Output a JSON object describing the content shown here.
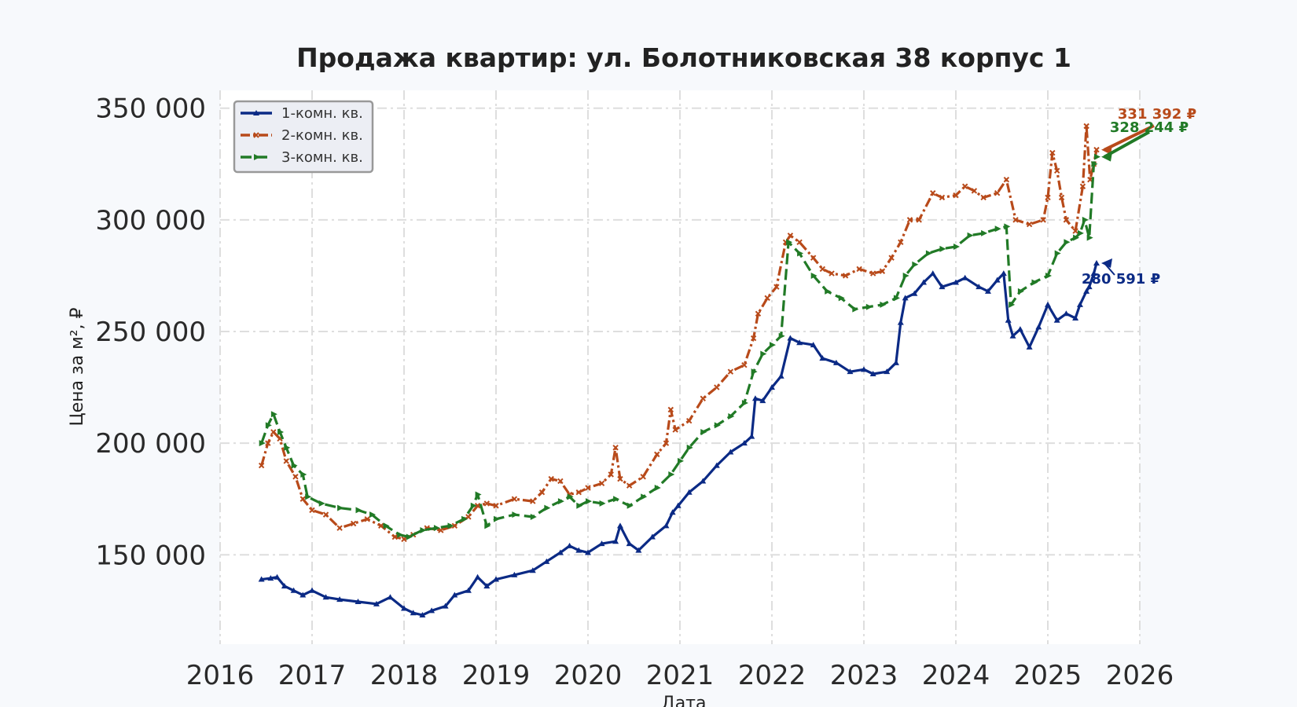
{
  "chart_data": {
    "type": "line",
    "title": "Продажа квартир: ул. Болотниковская 38 корпус 1",
    "xlabel": "Дата",
    "ylabel": "Цена за м², ₽",
    "xlim": [
      2016.0,
      2026.0
    ],
    "ylim": [
      110000,
      358000
    ],
    "x_ticks": [
      2016,
      2017,
      2018,
      2019,
      2020,
      2021,
      2022,
      2023,
      2024,
      2025,
      2026
    ],
    "x_tick_labels": [
      "2016",
      "2017",
      "2018",
      "2019",
      "2020",
      "2021",
      "2022",
      "2023",
      "2024",
      "2025",
      "2026"
    ],
    "y_ticks": [
      150000,
      200000,
      250000,
      300000,
      350000
    ],
    "y_tick_labels": [
      "150 000",
      "200 000",
      "250 000",
      "300 000",
      "350 000"
    ],
    "grid": true,
    "legend_position": "top-left",
    "series": [
      {
        "name": "1-комн. кв.",
        "color": "#0b2a85",
        "marker": "triangle-up",
        "line_style": "solid",
        "x": [
          2016.45,
          2016.55,
          2016.62,
          2016.7,
          2016.8,
          2016.9,
          2017.0,
          2017.15,
          2017.3,
          2017.5,
          2017.7,
          2017.85,
          2018.0,
          2018.1,
          2018.2,
          2018.3,
          2018.45,
          2018.55,
          2018.7,
          2018.8,
          2018.9,
          2019.0,
          2019.2,
          2019.4,
          2019.55,
          2019.7,
          2019.8,
          2019.9,
          2020.0,
          2020.15,
          2020.3,
          2020.35,
          2020.45,
          2020.55,
          2020.7,
          2020.85,
          2020.92,
          2020.98,
          2021.1,
          2021.25,
          2021.4,
          2021.55,
          2021.7,
          2021.78,
          2021.82,
          2021.9,
          2022.0,
          2022.1,
          2022.2,
          2022.3,
          2022.45,
          2022.55,
          2022.7,
          2022.85,
          2023.0,
          2023.1,
          2023.25,
          2023.35,
          2023.4,
          2023.45,
          2023.55,
          2023.65,
          2023.75,
          2023.85,
          2024.0,
          2024.1,
          2024.25,
          2024.35,
          2024.45,
          2024.52,
          2024.57,
          2024.62,
          2024.7,
          2024.8,
          2024.9,
          2025.0,
          2025.1,
          2025.2,
          2025.3,
          2025.35,
          2025.42,
          2025.45,
          2025.5,
          2025.53
        ],
        "y": [
          139000,
          139500,
          140000,
          136000,
          134000,
          132000,
          134000,
          131000,
          130000,
          129000,
          128000,
          131000,
          126000,
          124000,
          123000,
          125000,
          127000,
          132000,
          134000,
          140000,
          136000,
          139000,
          141000,
          143000,
          147000,
          151000,
          154000,
          152000,
          151000,
          155000,
          156000,
          163000,
          155000,
          152000,
          158000,
          163000,
          169000,
          172000,
          178000,
          183000,
          190000,
          196000,
          200000,
          203000,
          220000,
          219000,
          225000,
          230000,
          247000,
          245000,
          244000,
          238000,
          236000,
          232000,
          233000,
          231000,
          232000,
          236000,
          254000,
          265000,
          267000,
          272000,
          276000,
          270000,
          272000,
          274000,
          270000,
          268000,
          273000,
          276000,
          255000,
          248000,
          251000,
          243000,
          252000,
          262000,
          255000,
          258000,
          256000,
          262000,
          268000,
          270000,
          276000,
          280591
        ]
      },
      {
        "name": "2-комн. кв.",
        "color": "#b84a1a",
        "marker": "x",
        "line_style": "dashdot",
        "x": [
          2016.45,
          2016.52,
          2016.58,
          2016.65,
          2016.72,
          2016.82,
          2016.9,
          2017.0,
          2017.15,
          2017.3,
          2017.45,
          2017.6,
          2017.75,
          2017.9,
          2018.0,
          2018.1,
          2018.25,
          2018.4,
          2018.55,
          2018.7,
          2018.8,
          2018.9,
          2019.0,
          2019.2,
          2019.4,
          2019.5,
          2019.6,
          2019.7,
          2019.8,
          2019.9,
          2020.0,
          2020.15,
          2020.25,
          2020.3,
          2020.35,
          2020.45,
          2020.6,
          2020.75,
          2020.85,
          2020.9,
          2020.95,
          2021.1,
          2021.25,
          2021.4,
          2021.55,
          2021.7,
          2021.8,
          2021.85,
          2021.95,
          2022.05,
          2022.15,
          2022.2,
          2022.3,
          2022.45,
          2022.55,
          2022.65,
          2022.8,
          2022.95,
          2023.1,
          2023.2,
          2023.3,
          2023.4,
          2023.5,
          2023.6,
          2023.75,
          2023.85,
          2024.0,
          2024.1,
          2024.2,
          2024.3,
          2024.45,
          2024.55,
          2024.65,
          2024.8,
          2024.95,
          2025.0,
          2025.05,
          2025.1,
          2025.15,
          2025.2,
          2025.3,
          2025.38,
          2025.42,
          2025.46,
          2025.5,
          2025.53
        ],
        "y": [
          190000,
          200000,
          205000,
          202000,
          192000,
          185000,
          175000,
          170000,
          168000,
          162000,
          164000,
          166000,
          163000,
          158000,
          157000,
          159000,
          162000,
          161000,
          163000,
          167000,
          172000,
          173000,
          172000,
          175000,
          174000,
          178000,
          184000,
          183000,
          177000,
          178000,
          180000,
          182000,
          186000,
          198000,
          184000,
          181000,
          185000,
          195000,
          200000,
          215000,
          206000,
          210000,
          220000,
          225000,
          232000,
          235000,
          247000,
          258000,
          265000,
          270000,
          290000,
          293000,
          290000,
          283000,
          278000,
          276000,
          275000,
          278000,
          276000,
          277000,
          283000,
          290000,
          300000,
          300000,
          312000,
          310000,
          311000,
          315000,
          313000,
          310000,
          312000,
          318000,
          300000,
          298000,
          300000,
          310000,
          330000,
          322000,
          310000,
          300000,
          295000,
          315000,
          342000,
          318000,
          325000,
          331392
        ]
      },
      {
        "name": "3-комн. кв.",
        "color": "#217a26",
        "marker": "triangle-right",
        "line_style": "dashed",
        "x": [
          2016.45,
          2016.52,
          2016.58,
          2016.65,
          2016.72,
          2016.8,
          2016.9,
          2016.95,
          2017.1,
          2017.3,
          2017.5,
          2017.65,
          2017.8,
          2017.95,
          2018.05,
          2018.2,
          2018.35,
          2018.5,
          2018.65,
          2018.75,
          2018.8,
          2018.9,
          2019.0,
          2019.2,
          2019.4,
          2019.55,
          2019.7,
          2019.8,
          2019.9,
          2020.0,
          2020.15,
          2020.3,
          2020.45,
          2020.6,
          2020.75,
          2020.9,
          2021.0,
          2021.1,
          2021.25,
          2021.4,
          2021.55,
          2021.7,
          2021.8,
          2021.9,
          2022.0,
          2022.1,
          2022.18,
          2022.3,
          2022.45,
          2022.6,
          2022.75,
          2022.9,
          2023.05,
          2023.2,
          2023.35,
          2023.45,
          2023.55,
          2023.7,
          2023.85,
          2024.0,
          2024.15,
          2024.3,
          2024.45,
          2024.55,
          2024.6,
          2024.7,
          2024.85,
          2025.0,
          2025.1,
          2025.2,
          2025.3,
          2025.35,
          2025.4,
          2025.45,
          2025.5,
          2025.53
        ],
        "y": [
          200000,
          208000,
          213000,
          205000,
          198000,
          190000,
          186000,
          176000,
          173000,
          171000,
          170000,
          168000,
          163000,
          159000,
          158000,
          161000,
          162000,
          163000,
          166000,
          172000,
          177000,
          163000,
          166000,
          168000,
          167000,
          171000,
          174000,
          176000,
          172000,
          174000,
          173000,
          175000,
          172000,
          176000,
          180000,
          186000,
          192000,
          198000,
          205000,
          208000,
          212000,
          218000,
          232000,
          240000,
          244000,
          248000,
          290000,
          285000,
          275000,
          268000,
          265000,
          260000,
          261000,
          262000,
          265000,
          275000,
          280000,
          285000,
          287000,
          288000,
          293000,
          294000,
          296000,
          297000,
          262000,
          268000,
          272000,
          275000,
          285000,
          290000,
          292000,
          294000,
          300000,
          292000,
          325000,
          328244
        ]
      }
    ],
    "annotations": [
      {
        "text": "331 392 ₽",
        "series": "2-комн. кв.",
        "x": 2025.53,
        "y": 331392
      },
      {
        "text": "328 244 ₽",
        "series": "3-комн. кв.",
        "x": 2025.53,
        "y": 328244
      },
      {
        "text": "280 591 ₽",
        "series": "1-комн. кв.",
        "x": 2025.53,
        "y": 280591
      }
    ]
  }
}
